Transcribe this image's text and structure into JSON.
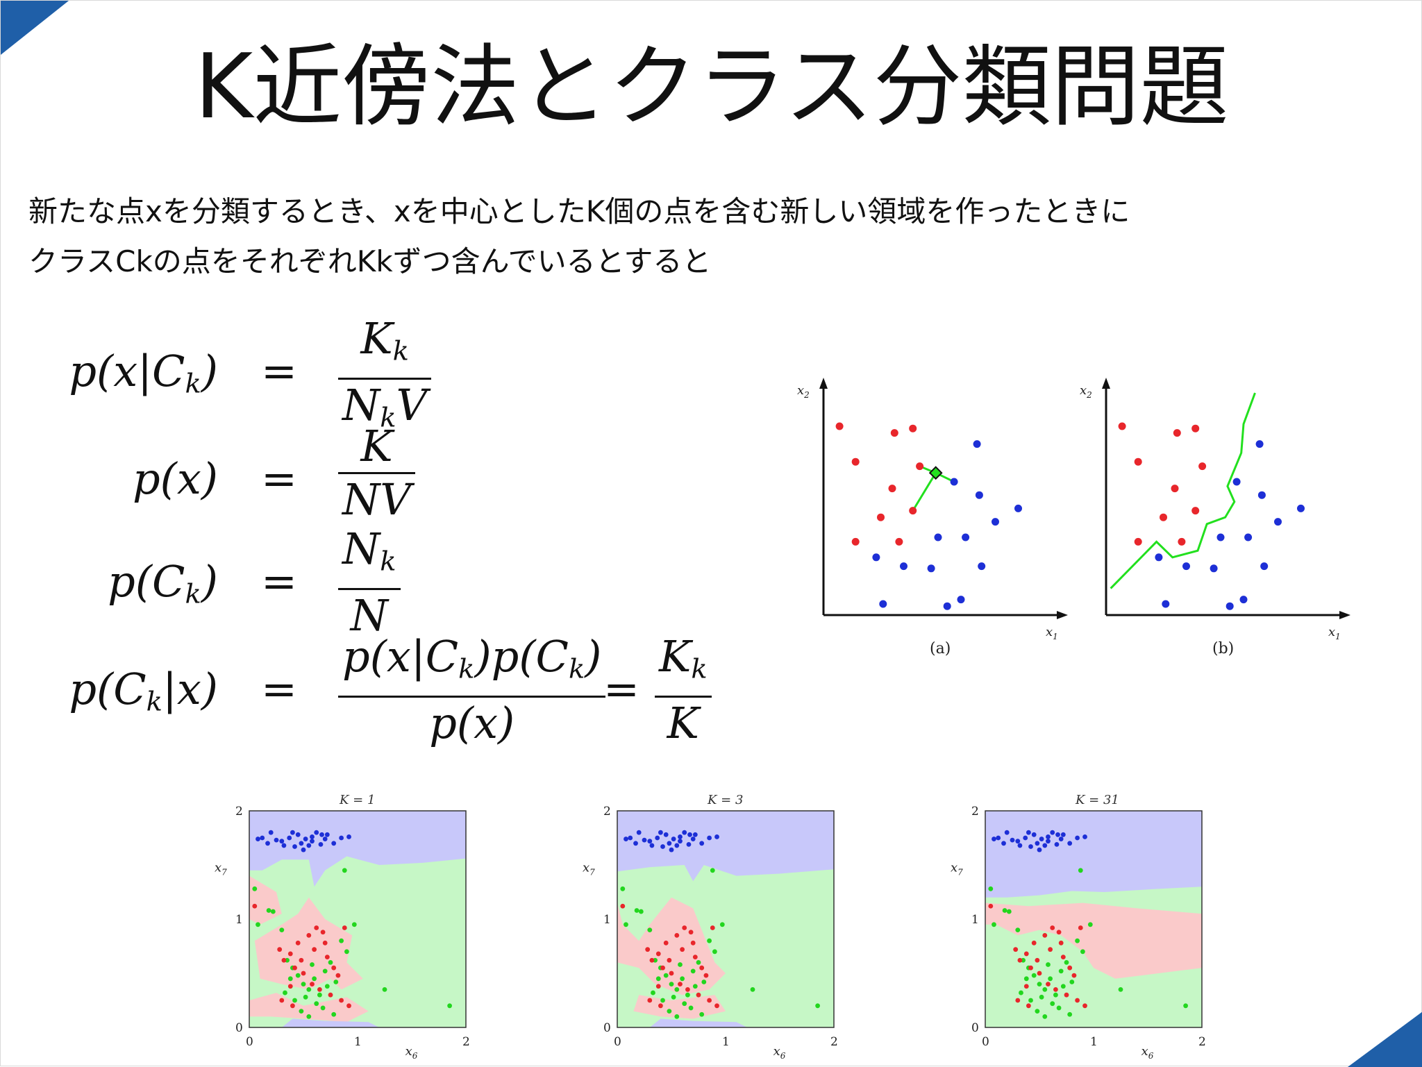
{
  "slide": {
    "title": "K近傍法とクラス分類問題",
    "intro_lines": [
      "新たな点xを分類するとき、xを中心としたK個の点を含む新しい領域を作ったときに",
      "クラスCkの点をそれぞれKkずつ含んでいるとすると"
    ],
    "accent_color": "#1f5fa8"
  },
  "equations": [
    {
      "lhs": "p(x|C",
      "lhs_sub": "k",
      "lhs_end": ")",
      "op": "=",
      "num": "K",
      "num_sub": "k",
      "den": "N",
      "den_sub": "k",
      "den_end": "V"
    },
    {
      "lhs": "p(x)",
      "op": "=",
      "num": "K",
      "den": "NV"
    },
    {
      "lhs": "p(C",
      "lhs_sub": "k",
      "lhs_end": ")",
      "op": "=",
      "num": "N",
      "num_sub": "k",
      "den": "N"
    },
    {
      "lhs": "p(C",
      "lhs_sub": "k",
      "lhs_end": "|x)",
      "op": "=",
      "num_a": "p(x|C",
      "num_a_sub": "k",
      "num_b": ")p(C",
      "num_b_sub": "k",
      "num_c": ")",
      "den": "p(x)",
      "op2": "=",
      "num2": "K",
      "num2_sub": "k",
      "den2": "K"
    }
  ],
  "scatter_figures": {
    "x_label": "x1",
    "y_label": "x2",
    "panels": [
      {
        "caption": "(a)",
        "has_knn_lines": true
      },
      {
        "caption": "(b)",
        "has_boundary": true
      }
    ],
    "colors": {
      "red": "#e8262b",
      "blue": "#1d2fd6",
      "green": "#22e01e"
    },
    "red_points": [
      [
        0.07,
        0.85
      ],
      [
        0.31,
        0.82
      ],
      [
        0.39,
        0.84
      ],
      [
        0.14,
        0.69
      ],
      [
        0.42,
        0.67
      ],
      [
        0.3,
        0.57
      ],
      [
        0.39,
        0.47
      ],
      [
        0.25,
        0.44
      ],
      [
        0.14,
        0.33
      ],
      [
        0.33,
        0.33
      ]
    ],
    "blue_points": [
      [
        0.67,
        0.77
      ],
      [
        0.57,
        0.6
      ],
      [
        0.68,
        0.54
      ],
      [
        0.85,
        0.48
      ],
      [
        0.75,
        0.42
      ],
      [
        0.5,
        0.35
      ],
      [
        0.62,
        0.35
      ],
      [
        0.23,
        0.26
      ],
      [
        0.35,
        0.22
      ],
      [
        0.47,
        0.21
      ],
      [
        0.69,
        0.22
      ],
      [
        0.26,
        0.05
      ],
      [
        0.54,
        0.04
      ],
      [
        0.6,
        0.07
      ]
    ],
    "query_point": [
      0.49,
      0.64
    ],
    "boundary": [
      [
        0.02,
        0.12
      ],
      [
        0.22,
        0.33
      ],
      [
        0.29,
        0.26
      ],
      [
        0.4,
        0.29
      ],
      [
        0.44,
        0.41
      ],
      [
        0.52,
        0.44
      ],
      [
        0.56,
        0.51
      ],
      [
        0.53,
        0.58
      ],
      [
        0.59,
        0.73
      ],
      [
        0.6,
        0.86
      ],
      [
        0.65,
        1.0
      ]
    ]
  },
  "knn_figures": {
    "x_label": "x6",
    "y_label": "x7",
    "x_ticks": [
      "0",
      "1",
      "2"
    ],
    "y_ticks": [
      "0",
      "1",
      "2"
    ],
    "panels": [
      {
        "title": "K = 1"
      },
      {
        "title": "K = 3"
      },
      {
        "title": "K = 31"
      }
    ],
    "region_colors": {
      "blue": "#c8c8fa",
      "green": "#c6f7c6",
      "red": "#facaca"
    },
    "point_colors": {
      "red": "#e8262b",
      "blue": "#1d2fd6",
      "green": "#22d61e"
    },
    "blue_points": [
      [
        0.12,
        1.75
      ],
      [
        0.17,
        1.7
      ],
      [
        0.2,
        1.8
      ],
      [
        0.25,
        1.73
      ],
      [
        0.3,
        1.72
      ],
      [
        0.37,
        1.75
      ],
      [
        0.42,
        1.67
      ],
      [
        0.45,
        1.78
      ],
      [
        0.52,
        1.74
      ],
      [
        0.58,
        1.72
      ],
      [
        0.62,
        1.8
      ],
      [
        0.7,
        1.74
      ],
      [
        0.78,
        1.7
      ],
      [
        0.85,
        1.75
      ],
      [
        0.32,
        1.68
      ],
      [
        0.48,
        1.7
      ],
      [
        0.55,
        1.68
      ],
      [
        0.4,
        1.8
      ],
      [
        0.67,
        1.78
      ],
      [
        0.92,
        1.76
      ],
      [
        0.5,
        1.64
      ],
      [
        0.58,
        1.76
      ],
      [
        0.08,
        1.74
      ],
      [
        0.72,
        1.78
      ],
      [
        0.66,
        1.69
      ]
    ],
    "green_points": [
      [
        0.05,
        1.28
      ],
      [
        0.08,
        0.95
      ],
      [
        0.18,
        1.08
      ],
      [
        0.22,
        1.07
      ],
      [
        0.3,
        0.9
      ],
      [
        0.35,
        0.62
      ],
      [
        0.4,
        0.55
      ],
      [
        0.45,
        0.48
      ],
      [
        0.5,
        0.4
      ],
      [
        0.55,
        0.35
      ],
      [
        0.6,
        0.45
      ],
      [
        0.65,
        0.3
      ],
      [
        0.7,
        0.52
      ],
      [
        0.75,
        0.6
      ],
      [
        0.8,
        0.42
      ],
      [
        0.85,
        0.8
      ],
      [
        0.9,
        0.7
      ],
      [
        0.97,
        0.95
      ],
      [
        1.25,
        0.35
      ],
      [
        1.85,
        0.2
      ],
      [
        0.42,
        0.25
      ],
      [
        0.48,
        0.15
      ],
      [
        0.55,
        0.1
      ],
      [
        0.62,
        0.22
      ],
      [
        0.68,
        0.18
      ],
      [
        0.58,
        0.58
      ],
      [
        0.72,
        0.38
      ],
      [
        0.33,
        0.32
      ],
      [
        0.88,
        1.45
      ],
      [
        0.38,
        0.45
      ],
      [
        0.52,
        0.28
      ],
      [
        0.78,
        0.12
      ]
    ],
    "red_points": [
      [
        0.05,
        1.12
      ],
      [
        0.28,
        0.72
      ],
      [
        0.32,
        0.62
      ],
      [
        0.38,
        0.68
      ],
      [
        0.42,
        0.55
      ],
      [
        0.48,
        0.62
      ],
      [
        0.55,
        0.85
      ],
      [
        0.6,
        0.72
      ],
      [
        0.62,
        0.92
      ],
      [
        0.68,
        0.88
      ],
      [
        0.72,
        0.65
      ],
      [
        0.78,
        0.55
      ],
      [
        0.82,
        0.48
      ],
      [
        0.88,
        0.92
      ],
      [
        0.3,
        0.25
      ],
      [
        0.4,
        0.2
      ],
      [
        0.5,
        0.5
      ],
      [
        0.58,
        0.4
      ],
      [
        0.65,
        0.35
      ],
      [
        0.75,
        0.3
      ],
      [
        0.85,
        0.25
      ],
      [
        0.92,
        0.2
      ],
      [
        0.45,
        0.78
      ],
      [
        0.7,
        0.78
      ],
      [
        0.38,
        0.38
      ]
    ]
  }
}
